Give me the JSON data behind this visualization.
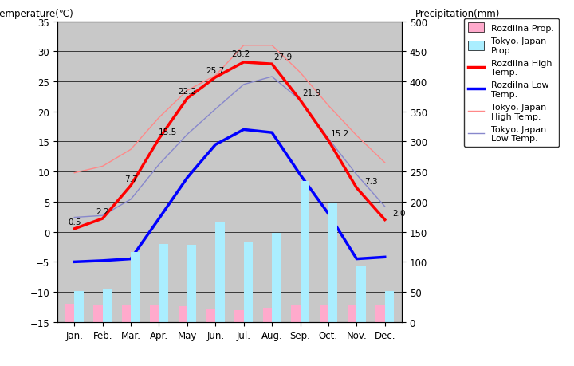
{
  "months": [
    "Jan.",
    "Feb.",
    "Mar.",
    "Apr.",
    "May",
    "Jun.",
    "Jul.",
    "Aug.",
    "Sep.",
    "Oct.",
    "Nov.",
    "Dec."
  ],
  "rozdilna_high": [
    0.5,
    2.2,
    7.7,
    15.5,
    22.2,
    25.7,
    28.2,
    27.9,
    21.9,
    15.2,
    7.3,
    2.0
  ],
  "rozdilna_low": [
    -5.0,
    -4.8,
    -4.5,
    2.2,
    9.0,
    14.5,
    17.0,
    16.5,
    9.5,
    3.0,
    -4.5,
    -4.2
  ],
  "tokyo_high": [
    9.8,
    10.9,
    13.7,
    19.0,
    23.5,
    26.0,
    31.0,
    31.0,
    26.5,
    21.0,
    16.0,
    11.5
  ],
  "tokyo_low": [
    2.4,
    2.7,
    5.4,
    11.2,
    16.2,
    20.4,
    24.5,
    25.8,
    21.9,
    15.5,
    9.5,
    4.2
  ],
  "rozdilna_prcp_mm": [
    30,
    28,
    28,
    27,
    26,
    21,
    20,
    23,
    27,
    28,
    27,
    28
  ],
  "tokyo_prcp_mm": [
    52,
    56,
    117,
    130,
    128,
    165,
    134,
    148,
    234,
    197,
    93,
    51
  ],
  "temp_ylim": [
    -15,
    35
  ],
  "prcp_ylim": [
    0,
    500
  ],
  "bg_color": "#c8c8c8",
  "rozdilna_high_color": "#ff0000",
  "rozdilna_low_color": "#0000ff",
  "tokyo_high_color": "#ff8888",
  "tokyo_low_color": "#8888cc",
  "rozdilna_prcp_color": "#ffaacc",
  "tokyo_prcp_color": "#aaeeff",
  "title_left": "Temperature(℃)",
  "title_right": "Precipitation(mm)",
  "temp_yticks": [
    -15,
    -10,
    -5,
    0,
    5,
    10,
    15,
    20,
    25,
    30,
    35
  ],
  "prcp_yticks": [
    0,
    50,
    100,
    150,
    200,
    250,
    300,
    350,
    400,
    450,
    500
  ]
}
